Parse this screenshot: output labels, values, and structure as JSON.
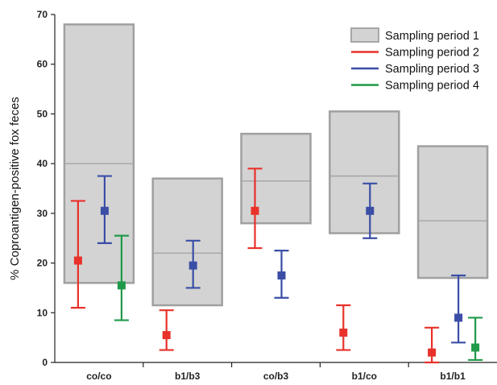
{
  "chart_data": {
    "type": "box-errorbar",
    "title": "",
    "xlabel": "",
    "ylabel": "% Coproantigen-positive fox feces",
    "ylim": [
      0,
      70
    ],
    "yticks": [
      0,
      10,
      20,
      30,
      40,
      50,
      60,
      70
    ],
    "grid": false,
    "legend_position": "top-right",
    "categories": [
      "co/co",
      "b1/b3",
      "co/b3",
      "b1/co",
      "b1/b1"
    ],
    "series": [
      {
        "name": "Sampling period 1",
        "style": "box",
        "color": "#d3d3d3",
        "edge_color": "#a0a0a0",
        "values": [
          {
            "low": 16,
            "mid": 40,
            "high": 68
          },
          {
            "low": 11.5,
            "mid": 22,
            "high": 37
          },
          {
            "low": 28,
            "mid": 36.5,
            "high": 46
          },
          {
            "low": 26,
            "mid": 37.5,
            "high": 50.5
          },
          {
            "low": 17,
            "mid": 28.5,
            "high": 43.5
          }
        ]
      },
      {
        "name": "Sampling period 2",
        "style": "errorbar",
        "color": "#e8312a",
        "values": [
          {
            "value": 20.5,
            "low": 11,
            "high": 32.5
          },
          {
            "value": 5.5,
            "low": 2.5,
            "high": 10.5
          },
          {
            "value": 30.5,
            "low": 23,
            "high": 39
          },
          {
            "value": 6,
            "low": 2.5,
            "high": 11.5
          },
          {
            "value": 2,
            "low": 0,
            "high": 7
          }
        ]
      },
      {
        "name": "Sampling period 3",
        "style": "errorbar",
        "color": "#3a4ea6",
        "values": [
          {
            "value": 30.5,
            "low": 24,
            "high": 37.5
          },
          {
            "value": 19.5,
            "low": 15,
            "high": 24.5
          },
          {
            "value": 17.5,
            "low": 13,
            "high": 22.5
          },
          {
            "value": 30.5,
            "low": 25,
            "high": 36
          },
          {
            "value": 9,
            "low": 4,
            "high": 17.5
          }
        ]
      },
      {
        "name": "Sampling period 4",
        "style": "errorbar",
        "color": "#1f9a49",
        "values": [
          {
            "value": 15.5,
            "low": 8.5,
            "high": 25.5
          },
          null,
          null,
          null,
          {
            "value": 3,
            "low": 0.5,
            "high": 9
          }
        ]
      }
    ]
  }
}
